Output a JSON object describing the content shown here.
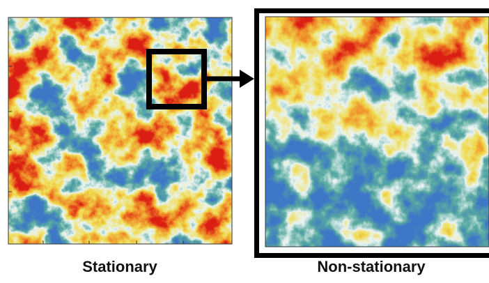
{
  "panels": [
    {
      "caption": "Stationary"
    },
    {
      "caption": "Non-stationary"
    }
  ]
}
